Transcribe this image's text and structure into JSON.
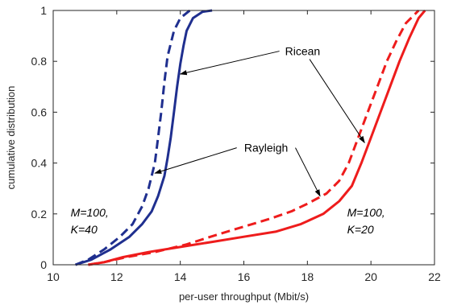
{
  "chart_data": {
    "type": "line",
    "xlabel": "per-user throughput (Mbit/s)",
    "ylabel": "cumulative distribution",
    "xlim": [
      10,
      22
    ],
    "ylim": [
      0,
      1
    ],
    "xticks": [
      10,
      12,
      14,
      16,
      18,
      20,
      22
    ],
    "yticks": [
      0,
      0.2,
      0.4,
      0.6,
      0.8,
      1
    ],
    "xtick_labels": [
      "10",
      "12",
      "14",
      "16",
      "18",
      "20",
      "22"
    ],
    "ytick_labels": [
      "0",
      "0.2",
      "0.4",
      "0.6",
      "0.8",
      "1"
    ],
    "grid": false,
    "series": [
      {
        "color": "#1f2f8f",
        "dash": false,
        "x": [
          10.7,
          11.2,
          11.8,
          12.4,
          12.8,
          13.1,
          13.3,
          13.5,
          13.6,
          13.7,
          13.8,
          13.9,
          14.0,
          14.1,
          14.2,
          14.4,
          14.7,
          15.0
        ],
        "y": [
          0.0,
          0.02,
          0.06,
          0.11,
          0.16,
          0.21,
          0.27,
          0.35,
          0.42,
          0.5,
          0.6,
          0.7,
          0.79,
          0.86,
          0.92,
          0.97,
          0.995,
          1.0
        ]
      },
      {
        "color": "#1f2f8f",
        "dash": true,
        "x": [
          10.7,
          11.1,
          11.6,
          12.1,
          12.5,
          12.8,
          13.0,
          13.2,
          13.3,
          13.4,
          13.5,
          13.6,
          13.8,
          14.0,
          14.3
        ],
        "y": [
          0.0,
          0.02,
          0.06,
          0.11,
          0.16,
          0.23,
          0.3,
          0.4,
          0.5,
          0.6,
          0.72,
          0.82,
          0.92,
          0.97,
          1.0
        ]
      },
      {
        "color": "#ee1c1c",
        "dash": false,
        "x": [
          11.1,
          11.6,
          12.2,
          13.0,
          14.0,
          15.0,
          16.0,
          17.0,
          17.8,
          18.5,
          19.0,
          19.4,
          19.7,
          20.0,
          20.3,
          20.6,
          20.9,
          21.2,
          21.5,
          21.7
        ],
        "y": [
          0.0,
          0.01,
          0.03,
          0.05,
          0.07,
          0.09,
          0.11,
          0.13,
          0.16,
          0.2,
          0.25,
          0.31,
          0.4,
          0.5,
          0.6,
          0.7,
          0.8,
          0.89,
          0.97,
          1.0
        ]
      },
      {
        "color": "#ee1c1c",
        "dash": true,
        "x": [
          11.1,
          11.6,
          12.3,
          13.2,
          14.2,
          15.2,
          16.0,
          16.8,
          17.5,
          18.0,
          18.6,
          19.0,
          19.3,
          19.6,
          19.9,
          20.2,
          20.5,
          20.8,
          21.1,
          21.5
        ],
        "y": [
          0.0,
          0.01,
          0.03,
          0.05,
          0.08,
          0.12,
          0.15,
          0.18,
          0.21,
          0.24,
          0.28,
          0.33,
          0.4,
          0.5,
          0.6,
          0.7,
          0.8,
          0.88,
          0.95,
          1.0
        ]
      }
    ],
    "annotations": [
      {
        "text": "Ricean",
        "at": [
          17.85,
          0.84
        ],
        "arrows_to": [
          [
            14.0,
            0.75
          ],
          [
            19.8,
            0.48
          ]
        ]
      },
      {
        "text": "Rayleigh",
        "at": [
          16.7,
          0.46
        ],
        "arrows_to": [
          [
            13.2,
            0.36
          ],
          [
            18.4,
            0.27
          ]
        ]
      }
    ],
    "labels": [
      {
        "lines": [
          "M=100,",
          "K=40"
        ],
        "at": [
          10.55,
          0.19
        ]
      },
      {
        "lines": [
          "M=100,",
          "K=20"
        ],
        "at": [
          19.25,
          0.19
        ]
      }
    ]
  }
}
